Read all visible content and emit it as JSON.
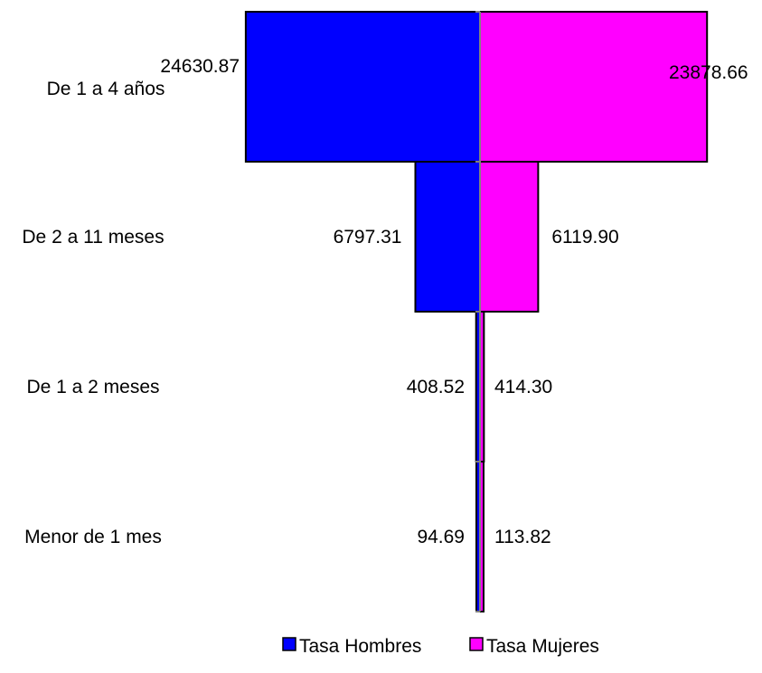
{
  "chart_data": {
    "type": "bar",
    "orientation": "horizontal-diverging",
    "categories": [
      "De 1 a 4 años",
      "De 2 a 11 meses",
      "De 1 a 2 meses",
      "Menor de 1 mes"
    ],
    "series": [
      {
        "name": "Tasa Hombres",
        "values": [
          24630.87,
          6797.31,
          408.52,
          94.69
        ],
        "labels": [
          "24630.87",
          "6797.31",
          "408.52",
          "94.69"
        ],
        "color": "#0000FF"
      },
      {
        "name": "Tasa Mujeres",
        "values": [
          23878.66,
          6119.9,
          414.3,
          113.82
        ],
        "labels": [
          "23878.66",
          "6119.90",
          "414.30",
          "113.82"
        ],
        "color": "#FF00FF"
      }
    ],
    "xlim": [
      -25000,
      25000
    ],
    "legend_position": "bottom"
  }
}
